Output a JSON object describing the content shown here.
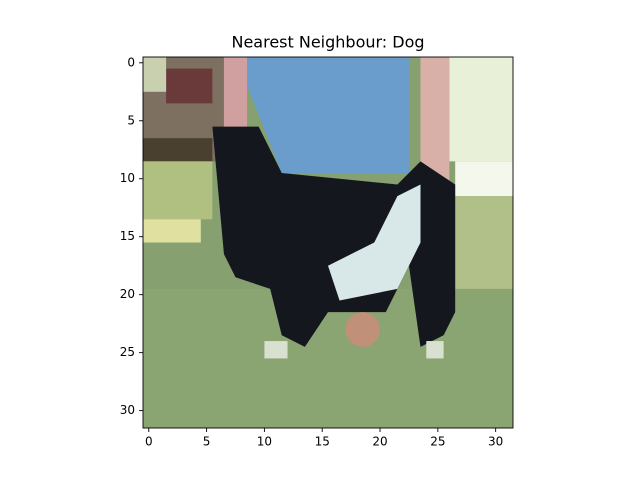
{
  "chart_data": {
    "type": "image",
    "title": "Nearest Neighbour: Dog",
    "xlim": [
      -0.5,
      31.5
    ],
    "ylim": [
      31.5,
      -0.5
    ],
    "xticks": [
      0,
      5,
      10,
      15,
      20,
      25,
      30
    ],
    "yticks": [
      0,
      5,
      10,
      15,
      20,
      25,
      30
    ]
  }
}
